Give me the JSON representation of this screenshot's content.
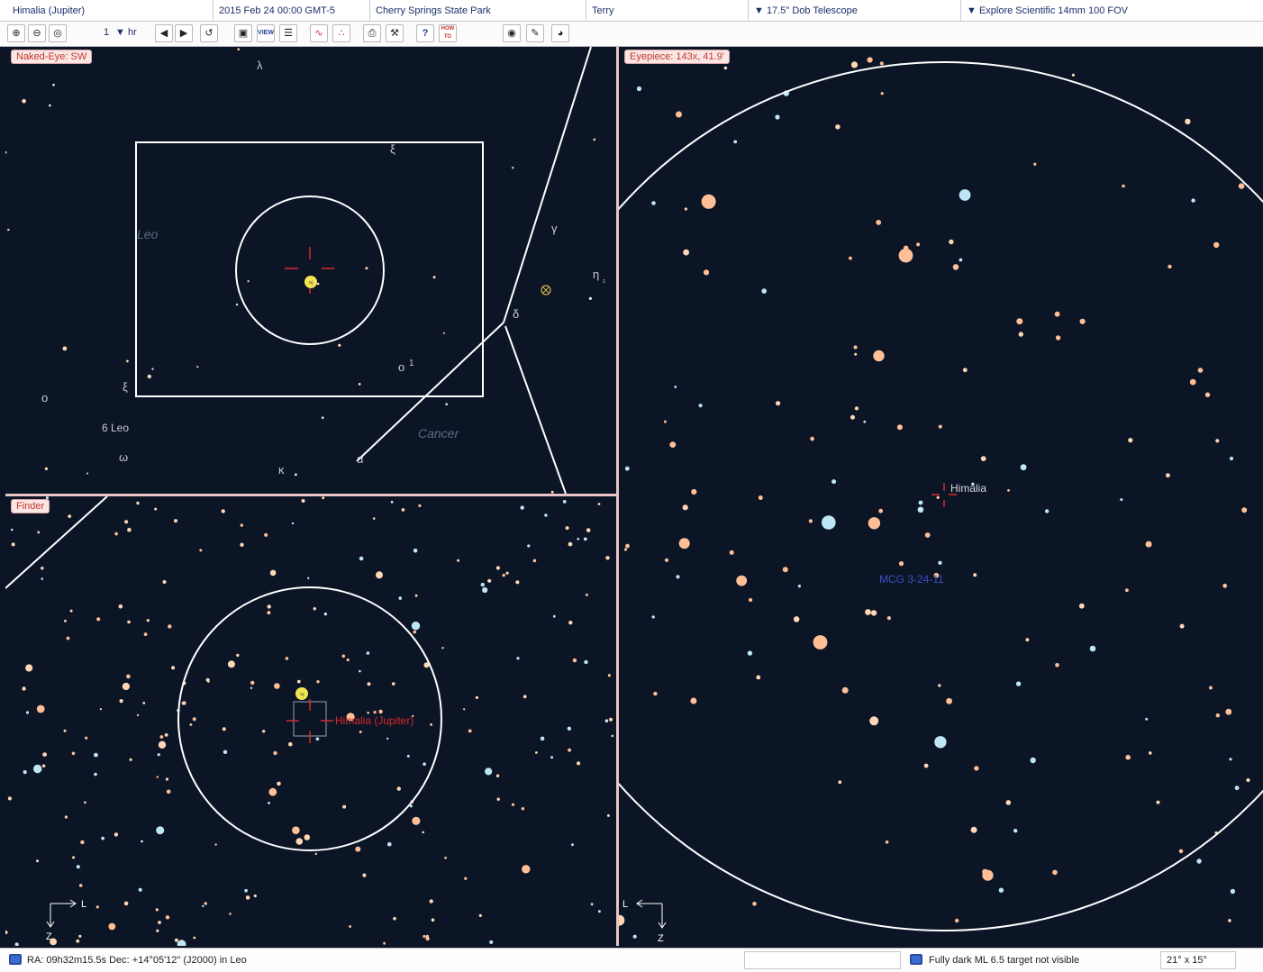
{
  "infobar": {
    "object": "Himalia (Jupiter)",
    "datetime": "2015 Feb 24   00:00  GMT-5",
    "location": "Cherry Springs State Park",
    "observer": "Terry",
    "telescope": "▼ 17.5\" Dob Telescope",
    "eyepiece": "▼ Explore Scientific 14mm 100 FOV"
  },
  "toolbar": {
    "zoom_in": "⊕",
    "zoom_out": "⊖",
    "zoom_fit": "◎",
    "step_value": "1",
    "step_unit": "▼ hr",
    "step_back": "◀",
    "step_forward": "▶",
    "now": "↺",
    "save": "▣",
    "view": "VIEW",
    "list": "☰",
    "draw1": "∿",
    "draw2": "∴",
    "print": "⎙",
    "tools": "⚒",
    "help": "?",
    "howto": "HOW TO",
    "eye": "◉",
    "pencil": "✎",
    "settings": "◕"
  },
  "panes": {
    "naked_eye": {
      "label": "Naked-Eye: SW",
      "constellation_labels": [
        "Leo",
        "Cancer"
      ],
      "star_labels": [
        "λ",
        "ξ",
        "γ",
        "δ",
        "η",
        "₁",
        "ο",
        "1",
        "ξ",
        "ο",
        "6 Leo",
        "ω",
        "κ",
        "α"
      ],
      "jupiter_symbol": "♃"
    },
    "finder": {
      "label": "Finder",
      "target_label": "Himalia (Jupiter)",
      "jupiter_symbol": "♃",
      "compass_l": "L",
      "compass_z": "Z"
    },
    "eyepiece": {
      "label": "Eyepiece: 143x, 41.9'",
      "target_label": "Himalia",
      "galaxy_label": "MCG 3-24-11",
      "compass_l": "L",
      "compass_z": "Z"
    }
  },
  "statusbar": {
    "coords": "RA:  09h32m15.5s  Dec: +14°05'12\" (J2000) in Leo",
    "visibility": "Fully dark ML 6.5 target not visible",
    "fov": "21° x 15°"
  },
  "colors": {
    "sky": "#0b1526",
    "star_warm": "#ffd7b5",
    "star_peach": "#ffbf96",
    "star_blue": "#bfe6f5",
    "jupiter": "#f2e653",
    "crosshair": "#d62a2a",
    "label_red": "#c0392b",
    "galaxy_label": "#3b4fc4"
  }
}
